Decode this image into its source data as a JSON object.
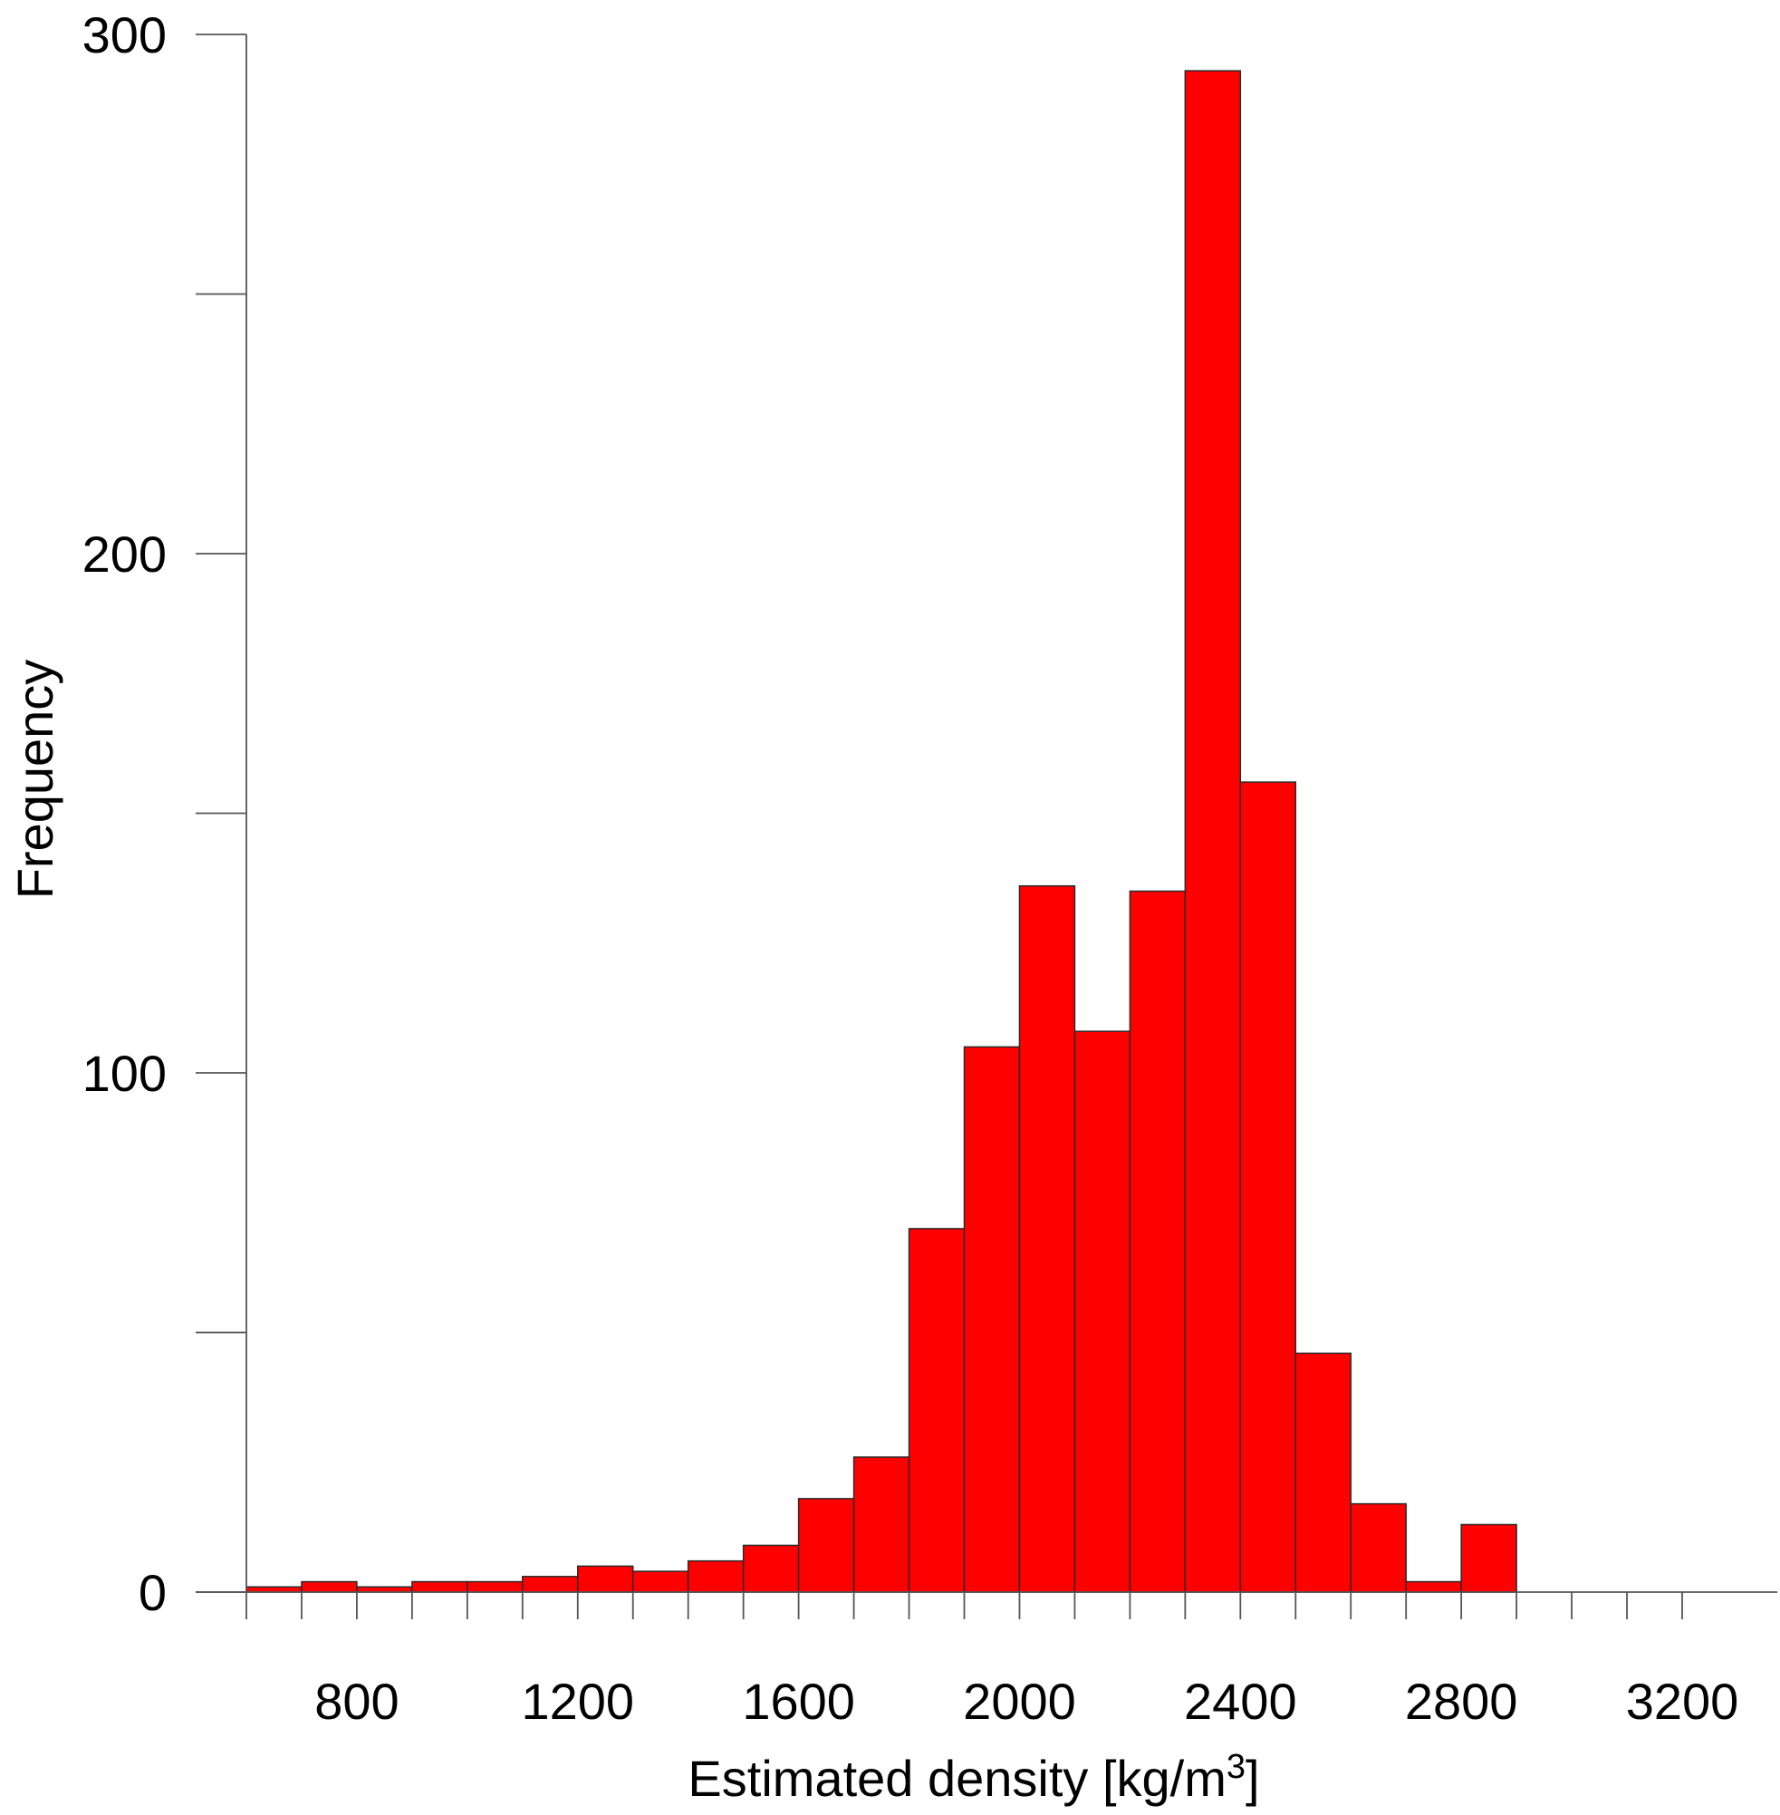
{
  "chart_data": {
    "type": "bar",
    "title": "",
    "xlabel": "Estimated density [kg/m",
    "xlabel_superscript": "3",
    "xlabel_suffix": "]",
    "ylabel": "Frequency",
    "bar_color": "#ff0000",
    "bar_edge_color": "#2a2a2a",
    "xlim": [
      600,
      3400
    ],
    "ylim": [
      0,
      300
    ],
    "x_ticks_labeled": [
      800,
      1200,
      1600,
      2000,
      2400,
      2800,
      3200
    ],
    "x_ticks_minor": [
      600,
      700,
      800,
      900,
      1000,
      1100,
      1200,
      1300,
      1400,
      1500,
      1600,
      1700,
      1800,
      1900,
      2000,
      2100,
      2200,
      2300,
      2400,
      2500,
      2600,
      2700,
      2800,
      2900,
      3000,
      3100,
      3200
    ],
    "y_ticks_labeled": [
      0,
      100,
      200,
      300
    ],
    "y_ticks": [
      0,
      50,
      100,
      150,
      200,
      250,
      300
    ],
    "bin_width": 100,
    "bins": [
      {
        "start": 600,
        "end": 700,
        "value": 1
      },
      {
        "start": 700,
        "end": 800,
        "value": 2
      },
      {
        "start": 800,
        "end": 900,
        "value": 1
      },
      {
        "start": 900,
        "end": 1000,
        "value": 2
      },
      {
        "start": 1000,
        "end": 1100,
        "value": 2
      },
      {
        "start": 1100,
        "end": 1200,
        "value": 3
      },
      {
        "start": 1200,
        "end": 1300,
        "value": 5
      },
      {
        "start": 1300,
        "end": 1400,
        "value": 4
      },
      {
        "start": 1400,
        "end": 1500,
        "value": 6
      },
      {
        "start": 1500,
        "end": 1600,
        "value": 9
      },
      {
        "start": 1600,
        "end": 1700,
        "value": 18
      },
      {
        "start": 1700,
        "end": 1800,
        "value": 26
      },
      {
        "start": 1800,
        "end": 1900,
        "value": 70
      },
      {
        "start": 1900,
        "end": 2000,
        "value": 105
      },
      {
        "start": 2000,
        "end": 2100,
        "value": 136
      },
      {
        "start": 2100,
        "end": 2200,
        "value": 108
      },
      {
        "start": 2200,
        "end": 2300,
        "value": 135
      },
      {
        "start": 2300,
        "end": 2400,
        "value": 293
      },
      {
        "start": 2400,
        "end": 2500,
        "value": 156
      },
      {
        "start": 2500,
        "end": 2600,
        "value": 46
      },
      {
        "start": 2600,
        "end": 2700,
        "value": 17
      },
      {
        "start": 2700,
        "end": 2800,
        "value": 2
      },
      {
        "start": 2800,
        "end": 2900,
        "value": 13
      }
    ],
    "grid": false,
    "legend": "none"
  }
}
